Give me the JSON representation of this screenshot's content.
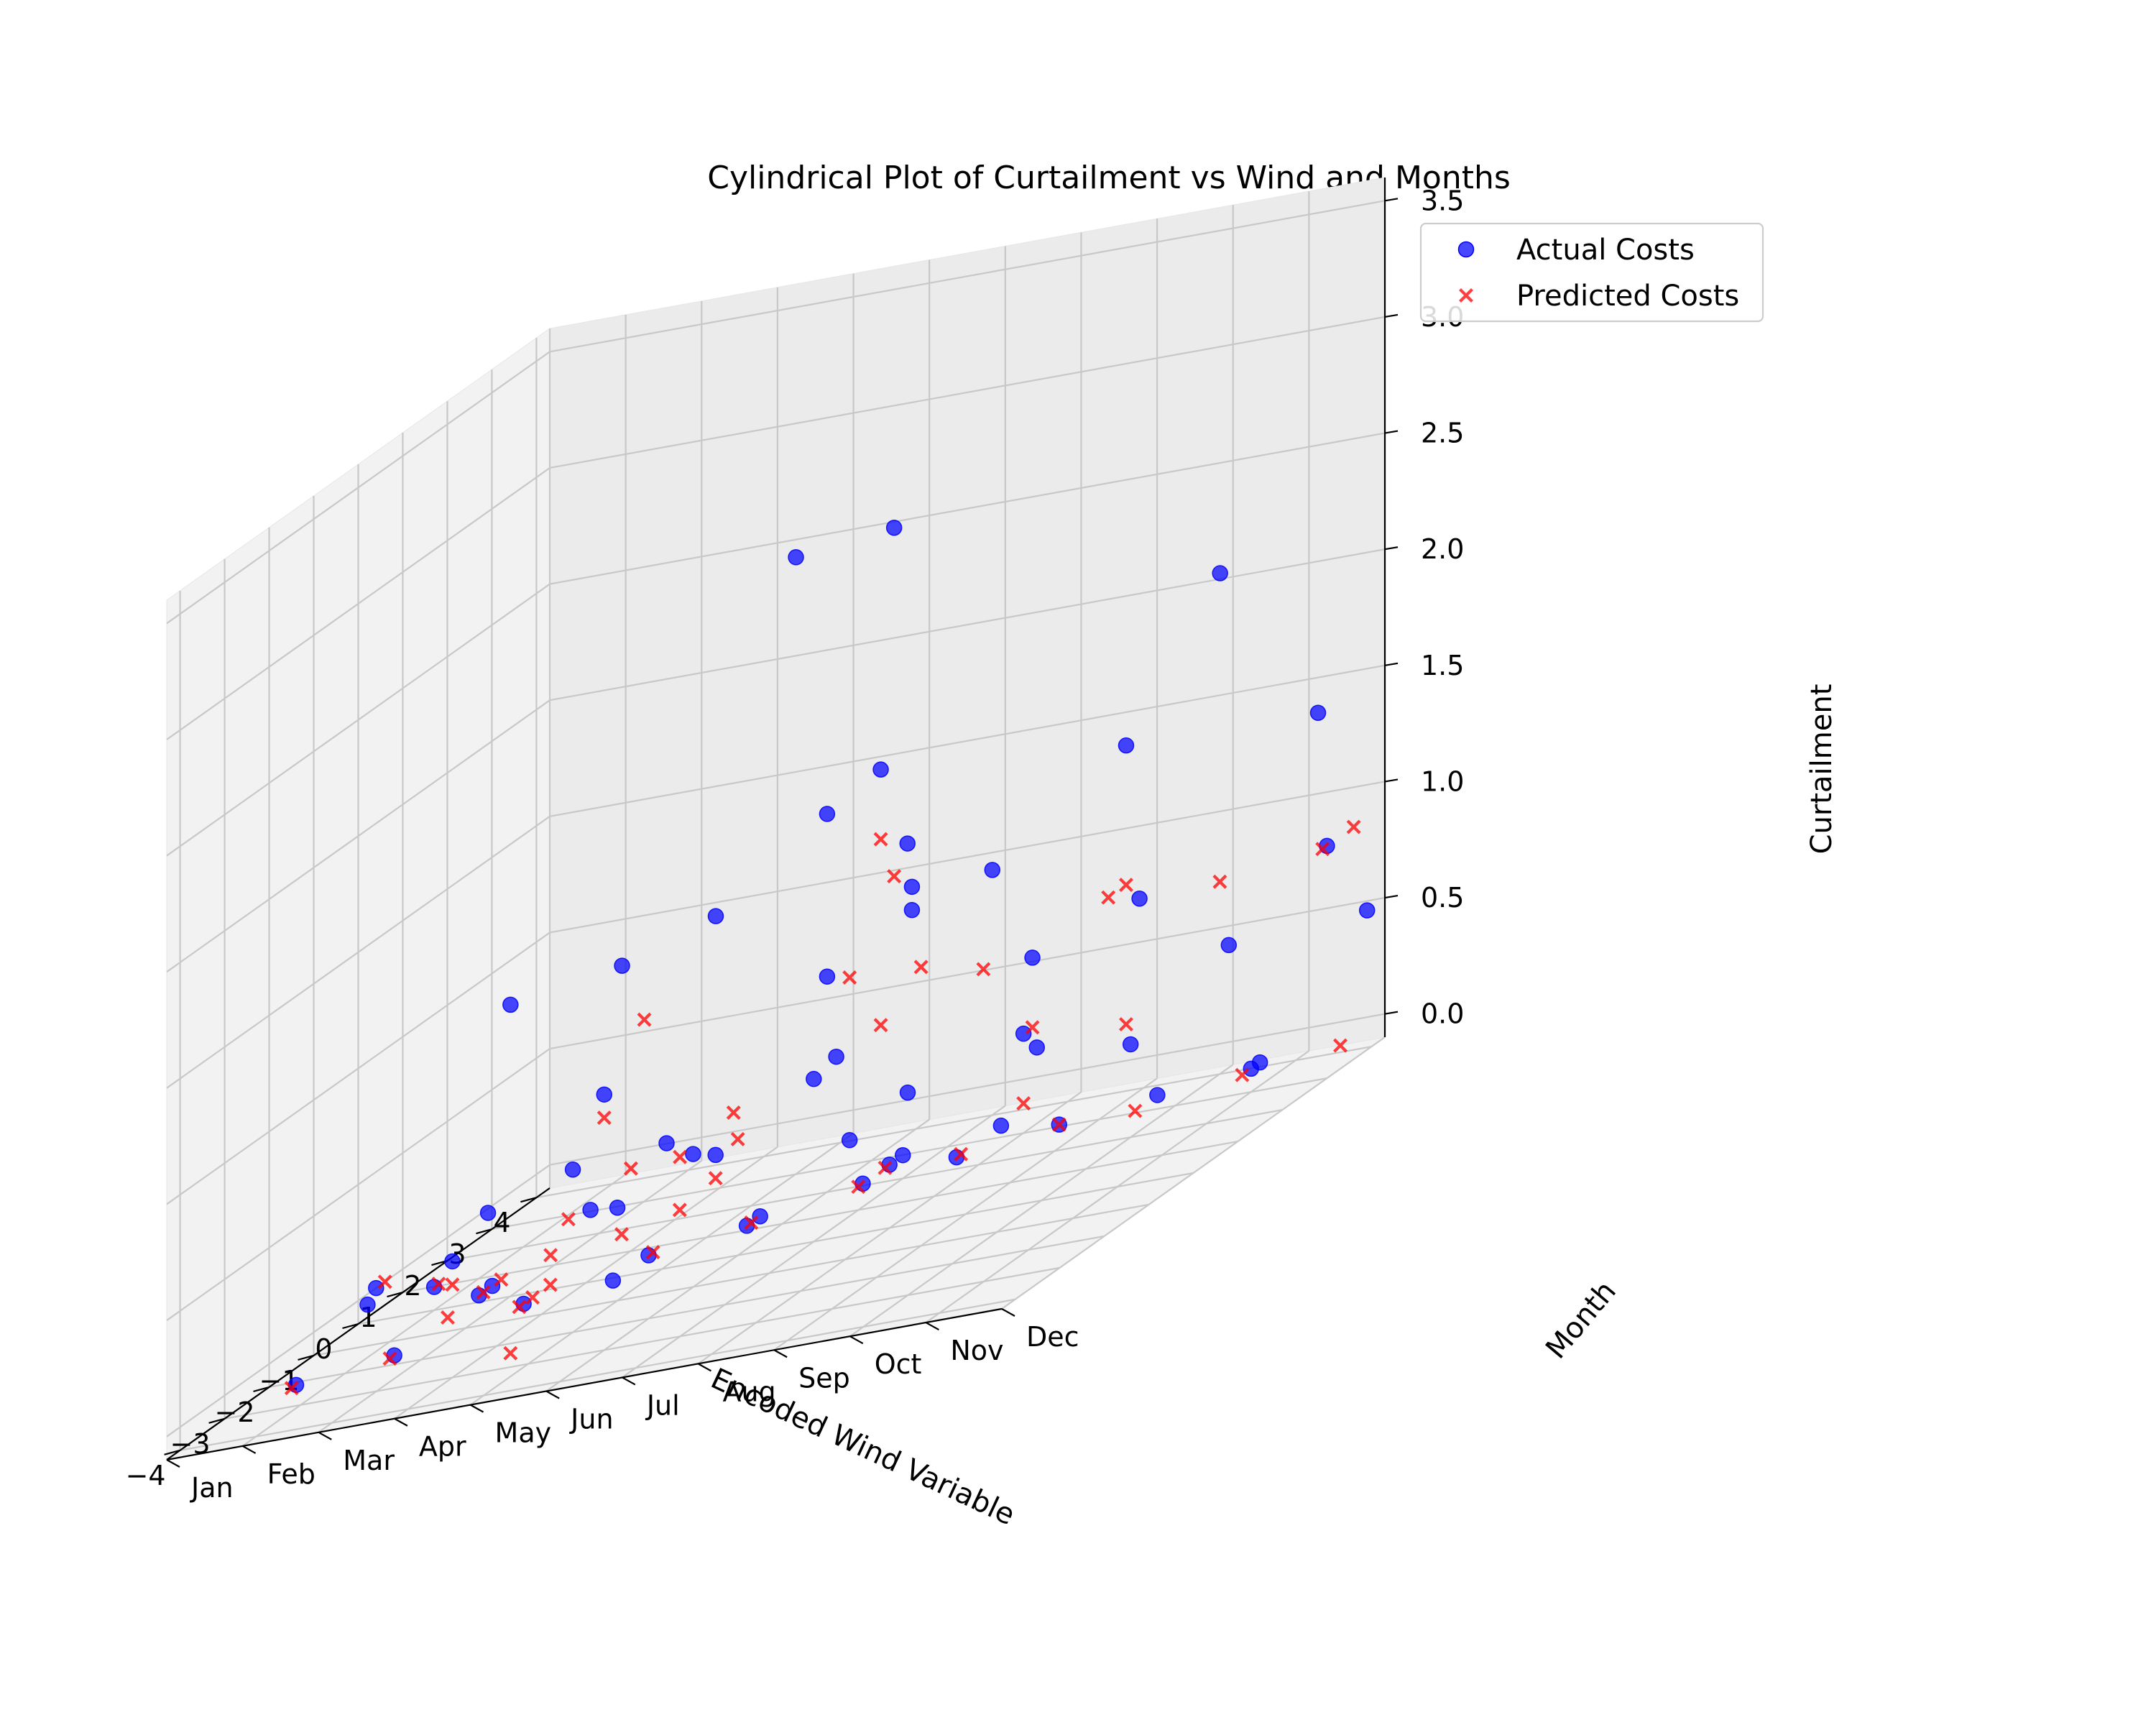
{
  "chart_data": {
    "type": "scatter",
    "title": "Cylindrical Plot of Curtailment vs Wind and Months",
    "xlabel": "Encoded Wind Variable",
    "ylabel": "Month",
    "zlabel": "Curtailment",
    "x_ticks": [
      "−4",
      "−3",
      "−2",
      "−1",
      "0",
      "1",
      "2",
      "3",
      "4"
    ],
    "y_ticks": [
      "Jan",
      "Feb",
      "Mar",
      "Apr",
      "May",
      "Jun",
      "Jul",
      "Aug",
      "Sep",
      "Oct",
      "Nov",
      "Dec"
    ],
    "z_ticks": [
      "0.0",
      "0.5",
      "1.0",
      "1.5",
      "2.0",
      "2.5",
      "3.0",
      "3.5"
    ],
    "xlim": [
      -4.3,
      4.3
    ],
    "ylim": [
      1,
      12
    ],
    "zlim": [
      -0.1,
      3.6
    ],
    "legend": {
      "position": "top-right",
      "items": [
        {
          "label": "Actual Costs",
          "marker": "circle",
          "color": "#0000ff"
        },
        {
          "label": "Predicted Costs",
          "marker": "x",
          "color": "#ff0000"
        }
      ]
    },
    "series": [
      {
        "name": "Actual Costs",
        "marker": "circle",
        "color": "#0000ff",
        "points": [
          {
            "x": -0.4,
            "month": 7,
            "z": 2.9
          },
          {
            "x": 0.1,
            "month": 8,
            "z": 2.9
          },
          {
            "x": 0.6,
            "month": 12,
            "z": 2.4
          },
          {
            "x": -2.6,
            "month": 6,
            "z": 1.5
          },
          {
            "x": -2.2,
            "month": 7,
            "z": 1.6
          },
          {
            "x": -3.4,
            "month": 5,
            "z": 1.5
          },
          {
            "x": -3.0,
            "month": 6,
            "z": 1.0
          },
          {
            "x": -0.2,
            "month": 8,
            "z": 1.9
          },
          {
            "x": 0.3,
            "month": 7,
            "z": 1.7
          },
          {
            "x": 0.4,
            "month": 8,
            "z": 1.5
          },
          {
            "x": 0.5,
            "month": 8,
            "z": 1.3
          },
          {
            "x": 0.3,
            "month": 7,
            "z": 1.0
          },
          {
            "x": 0.5,
            "month": 8,
            "z": 1.2
          },
          {
            "x": 0.6,
            "month": 9,
            "z": 1.3
          },
          {
            "x": -1.3,
            "month": 9,
            "z": 0.6
          },
          {
            "x": -1.2,
            "month": 8,
            "z": 0.8
          },
          {
            "x": -0.9,
            "month": 8,
            "z": 0.4
          },
          {
            "x": 1.9,
            "month": 10,
            "z": 1.6
          },
          {
            "x": 2.8,
            "month": 12,
            "z": 1.5
          },
          {
            "x": 1.5,
            "month": 9,
            "z": 0.8
          },
          {
            "x": 2.2,
            "month": 10,
            "z": 0.9
          },
          {
            "x": 2.5,
            "month": 11,
            "z": 0.6
          },
          {
            "x": 3.0,
            "month": 12,
            "z": 0.9
          },
          {
            "x": 3.9,
            "month": 12,
            "z": 0.5
          },
          {
            "x": 1.3,
            "month": 9,
            "z": 0.5
          },
          {
            "x": 1.6,
            "month": 9,
            "z": 0.4
          },
          {
            "x": 2.0,
            "month": 10,
            "z": 0.3
          },
          {
            "x": 1.5,
            "month": 8,
            "z": 0.0
          },
          {
            "x": 2.1,
            "month": 9,
            "z": 0.0
          },
          {
            "x": 2.6,
            "month": 10,
            "z": 0.0
          },
          {
            "x": 3.0,
            "month": 11,
            "z": 0.0
          },
          {
            "x": 3.2,
            "month": 11,
            "z": 0.0
          },
          {
            "x": -3.1,
            "month": 2,
            "z": 0.0
          },
          {
            "x": -2.6,
            "month": 3,
            "z": 0.0
          },
          {
            "x": -1.4,
            "month": 4,
            "z": 0.0
          },
          {
            "x": -1.1,
            "month": 5,
            "z": 0.0
          },
          {
            "x": -0.3,
            "month": 5,
            "z": 0.0
          },
          {
            "x": 0.2,
            "month": 6,
            "z": 0.0
          },
          {
            "x": 0.5,
            "month": 6,
            "z": 0.0
          },
          {
            "x": 1.1,
            "month": 7,
            "z": 0.0
          },
          {
            "x": 1.7,
            "month": 7,
            "z": 0.0
          },
          {
            "x": 2.0,
            "month": 7,
            "z": 0.0
          },
          {
            "x": 2.5,
            "month": 8,
            "z": 0.0
          },
          {
            "x": -0.7,
            "month": 3,
            "z": 0.0
          },
          {
            "x": -0.4,
            "month": 3,
            "z": 0.0
          },
          {
            "x": 0.0,
            "month": 2,
            "z": 0.0
          },
          {
            "x": 0.4,
            "month": 1,
            "z": 0.0
          },
          {
            "x": -3.2,
            "month": 3,
            "z": 0.3
          },
          {
            "x": -3.0,
            "month": 4,
            "z": 0.4
          },
          {
            "x": -2.2,
            "month": 4,
            "z": 0.5
          },
          {
            "x": -2.0,
            "month": 5,
            "z": 0.6
          },
          {
            "x": -1.6,
            "month": 6,
            "z": 0.6
          },
          {
            "x": -1.0,
            "month": 5,
            "z": 0.3
          },
          {
            "x": -0.5,
            "month": 6,
            "z": 0.4
          },
          {
            "x": 0.0,
            "month": 7,
            "z": 0.6
          },
          {
            "x": 0.1,
            "month": 4,
            "z": 0.2
          },
          {
            "x": 0.7,
            "month": 5,
            "z": 0.3
          }
        ]
      },
      {
        "name": "Predicted Costs",
        "marker": "x",
        "color": "#ff0000",
        "points": [
          {
            "x": -0.2,
            "month": 8,
            "z": 1.6
          },
          {
            "x": 0.1,
            "month": 8,
            "z": 1.4
          },
          {
            "x": -0.9,
            "month": 8,
            "z": 1.1
          },
          {
            "x": -1.0,
            "month": 9,
            "z": 1.1
          },
          {
            "x": -0.2,
            "month": 8,
            "z": 0.8
          },
          {
            "x": 0.4,
            "month": 9,
            "z": 0.9
          },
          {
            "x": -2.1,
            "month": 6,
            "z": 1.2
          },
          {
            "x": -3.0,
            "month": 6,
            "z": 0.9
          },
          {
            "x": -2.4,
            "month": 6,
            "z": 0.6
          },
          {
            "x": -1.8,
            "month": 7,
            "z": 0.7
          },
          {
            "x": 1.5,
            "month": 10,
            "z": 1.0
          },
          {
            "x": 1.9,
            "month": 10,
            "z": 1.0
          },
          {
            "x": 2.3,
            "month": 11,
            "z": 0.9
          },
          {
            "x": 2.9,
            "month": 12,
            "z": 0.9
          },
          {
            "x": 3.6,
            "month": 12,
            "z": 0.9
          },
          {
            "x": 1.5,
            "month": 9,
            "z": 0.5
          },
          {
            "x": 1.9,
            "month": 10,
            "z": 0.4
          },
          {
            "x": 1.3,
            "month": 9,
            "z": 0.2
          },
          {
            "x": 2.1,
            "month": 10,
            "z": 0.0
          },
          {
            "x": 2.8,
            "month": 11,
            "z": 0.0
          },
          {
            "x": 3.3,
            "month": 12,
            "z": 0.0
          },
          {
            "x": 1.6,
            "month": 8,
            "z": 0.0
          },
          {
            "x": 2.1,
            "month": 9,
            "z": 0.0
          },
          {
            "x": -3.2,
            "month": 2,
            "z": 0.0
          },
          {
            "x": -2.7,
            "month": 3,
            "z": 0.0
          },
          {
            "x": -1.5,
            "month": 4,
            "z": 0.0
          },
          {
            "x": -1.2,
            "month": 4,
            "z": 0.0
          },
          {
            "x": -0.2,
            "month": 5,
            "z": 0.0
          },
          {
            "x": 0.3,
            "month": 6,
            "z": 0.0
          },
          {
            "x": 1.0,
            "month": 7,
            "z": 0.0
          },
          {
            "x": 1.6,
            "month": 7,
            "z": 0.0
          },
          {
            "x": -0.6,
            "month": 3,
            "z": 0.0
          },
          {
            "x": -0.2,
            "month": 3,
            "z": 0.0
          },
          {
            "x": 0.1,
            "month": 2,
            "z": 0.0
          },
          {
            "x": 0.6,
            "month": 1,
            "z": 0.0
          },
          {
            "x": -1.4,
            "month": 3,
            "z": 0.0
          },
          {
            "x": -0.8,
            "month": 4,
            "z": 0.0
          },
          {
            "x": -3.4,
            "month": 5,
            "z": 0.0
          },
          {
            "x": -3.0,
            "month": 4,
            "z": 0.3
          },
          {
            "x": -2.5,
            "month": 5,
            "z": 0.3
          },
          {
            "x": -2.1,
            "month": 5,
            "z": 0.4
          },
          {
            "x": -1.3,
            "month": 6,
            "z": 0.5
          },
          {
            "x": -0.5,
            "month": 6,
            "z": 0.3
          },
          {
            "x": 0.0,
            "month": 6,
            "z": 0.4
          },
          {
            "x": 0.4,
            "month": 5,
            "z": 0.1
          },
          {
            "x": 0.8,
            "month": 4,
            "z": 0.0
          }
        ]
      }
    ]
  }
}
